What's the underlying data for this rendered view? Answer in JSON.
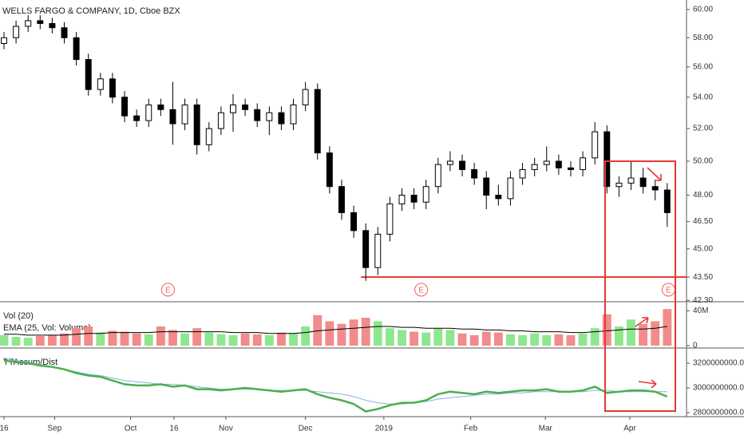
{
  "chart_data": [
    {
      "type": "candlestick",
      "title": "WELLS FARGO & COMPANY, 1D, Cboe BZX",
      "log_scale": true,
      "up_color": "#ffffff",
      "down_color": "#000000",
      "open": [
        57.6,
        58.0,
        58.8,
        59.2,
        59.0,
        58.7,
        58.0,
        56.5,
        54.5,
        55.2,
        54.0,
        52.8,
        52.5,
        53.5,
        53.2,
        52.3,
        53.5,
        51.0,
        52.0,
        53.0,
        53.5,
        53.2,
        52.5,
        53.0,
        52.3,
        53.5,
        54.5,
        50.5,
        48.5,
        47.0,
        46.0,
        44.0,
        45.8,
        47.5,
        48.0,
        47.6,
        48.5,
        49.8,
        50.0,
        49.5,
        49.0,
        48.0,
        47.8,
        49.0,
        49.5,
        49.8,
        50.0,
        49.6,
        49.5,
        50.2,
        51.8,
        48.5,
        48.7,
        49.0,
        48.5,
        48.3
      ],
      "high": [
        58.4,
        59.2,
        59.6,
        59.6,
        59.4,
        59.1,
        58.4,
        56.9,
        55.6,
        55.6,
        54.4,
        53.2,
        53.9,
        53.9,
        55.0,
        53.9,
        53.9,
        52.4,
        53.4,
        54.2,
        53.9,
        53.6,
        53.4,
        53.4,
        53.9,
        55.0,
        54.9,
        50.9,
        48.9,
        47.4,
        46.4,
        46.2,
        47.9,
        48.4,
        48.4,
        48.9,
        50.2,
        50.6,
        50.4,
        49.9,
        49.4,
        48.6,
        49.4,
        49.9,
        50.2,
        50.9,
        50.4,
        50.0,
        50.6,
        52.4,
        52.2,
        49.1,
        50.0,
        49.6,
        48.9,
        48.7
      ],
      "low": [
        57.2,
        57.6,
        58.4,
        58.6,
        58.3,
        57.6,
        56.1,
        54.1,
        54.1,
        53.6,
        52.4,
        52.1,
        52.1,
        52.8,
        51.0,
        51.9,
        50.4,
        50.6,
        51.6,
        51.8,
        52.8,
        52.1,
        51.6,
        51.9,
        51.9,
        53.1,
        50.1,
        48.1,
        46.6,
        45.6,
        43.3,
        43.6,
        45.4,
        47.1,
        47.2,
        47.2,
        48.1,
        49.4,
        49.1,
        48.6,
        47.2,
        47.4,
        47.4,
        48.6,
        49.1,
        49.4,
        49.2,
        49.1,
        49.1,
        49.8,
        48.1,
        47.9,
        48.3,
        48.1,
        47.7,
        46.2
      ],
      "close": [
        58.0,
        58.8,
        59.2,
        59.0,
        58.7,
        58.0,
        56.5,
        54.5,
        55.2,
        54.0,
        52.8,
        52.5,
        53.5,
        53.2,
        52.3,
        53.5,
        51.0,
        52.0,
        53.0,
        53.5,
        53.2,
        52.5,
        53.0,
        52.3,
        53.5,
        54.5,
        50.5,
        48.5,
        47.0,
        46.0,
        44.0,
        45.8,
        47.5,
        48.0,
        47.6,
        48.5,
        49.8,
        50.0,
        49.5,
        49.0,
        48.0,
        47.8,
        49.0,
        49.5,
        49.8,
        50.0,
        49.6,
        49.5,
        50.2,
        51.8,
        48.5,
        48.7,
        49.0,
        48.5,
        48.3,
        47.0
      ],
      "xlim": [
        -0.33,
        56.6
      ],
      "xticks": [
        {
          "value": 0,
          "label": "16"
        },
        {
          "value": 4.2,
          "label": "Sep"
        },
        {
          "value": 10.5,
          "label": "Oct"
        },
        {
          "value": 14.1,
          "label": "16"
        },
        {
          "value": 18.4,
          "label": "Nov"
        },
        {
          "value": 25,
          "label": "Dec"
        },
        {
          "value": 31.5,
          "label": "2019"
        },
        {
          "value": 38.7,
          "label": "Feb"
        },
        {
          "value": 44.9,
          "label": "Mar"
        },
        {
          "value": 51.9,
          "label": "Apr"
        }
      ],
      "ylim": [
        42.23,
        60.69
      ],
      "yticks": [
        {
          "value": 60,
          "label": "60.00"
        },
        {
          "value": 58,
          "label": "58.00"
        },
        {
          "value": 56,
          "label": "56.00"
        },
        {
          "value": 54,
          "label": "54.00"
        },
        {
          "value": 52,
          "label": "52.00"
        },
        {
          "value": 50,
          "label": "50.00"
        },
        {
          "value": 48,
          "label": "48.00"
        },
        {
          "value": 46.5,
          "label": "46.50"
        },
        {
          "value": 45,
          "label": "45.00"
        },
        {
          "value": 43.5,
          "label": "43.50"
        },
        {
          "value": 42.3,
          "label": "42.30"
        }
      ],
      "markers": [
        {
          "label": "E",
          "x": 13.6
        },
        {
          "label": "E",
          "x": 34.6
        },
        {
          "label": "E",
          "x": 55.1
        }
      ],
      "hline": {
        "value": 43.5,
        "x": [
          29.6,
          56.6
        ],
        "color": "#e53935"
      }
    },
    {
      "type": "bar",
      "title": "Vol (20)",
      "subtitle": "EMA (25, Vol: Volume)",
      "up_color": "#8ee68e",
      "down_color": "#f28b8b",
      "line_color": "#000000",
      "values": [
        12,
        10,
        9,
        11,
        12,
        14,
        20,
        22,
        15,
        17,
        16,
        14,
        13,
        22,
        18,
        14,
        20,
        15,
        13,
        12,
        14,
        13,
        12,
        15,
        14,
        22,
        35,
        28,
        25,
        30,
        32,
        28,
        20,
        18,
        16,
        15,
        20,
        18,
        14,
        12,
        16,
        15,
        13,
        12,
        14,
        12,
        13,
        12,
        14,
        20,
        36,
        22,
        30,
        25,
        28,
        42
      ],
      "ema": [
        13,
        13,
        12,
        12,
        12,
        12,
        13,
        14,
        14,
        15,
        15,
        15,
        15,
        16,
        16,
        16,
        16,
        16,
        16,
        15,
        15,
        15,
        14,
        14,
        14,
        15,
        17,
        18,
        19,
        20,
        21,
        22,
        22,
        21,
        21,
        20,
        20,
        20,
        19,
        19,
        18,
        18,
        17,
        17,
        16,
        16,
        16,
        15,
        15,
        16,
        17,
        18,
        19,
        19,
        20,
        22
      ],
      "ylim": [
        0,
        48.6
      ],
      "yticks": [
        {
          "value": 40,
          "label": "40M"
        },
        0
      ]
    },
    {
      "type": "line",
      "title": "TTAccum/Dist",
      "series": [
        {
          "name": "TTAccum/Dist",
          "color": "#4caf50",
          "values": [
            3220000000.0,
            3210000000.0,
            3200000000.0,
            3180000000.0,
            3170000000.0,
            3150000000.0,
            3120000000.0,
            3100000000.0,
            3090000000.0,
            3060000000.0,
            3030000000.0,
            3020000000.0,
            3020000000.0,
            3030000000.0,
            3010000000.0,
            3020000000.0,
            2990000000.0,
            2990000000.0,
            2980000000.0,
            2990000000.0,
            3000000000.0,
            2990000000.0,
            2980000000.0,
            2970000000.0,
            2980000000.0,
            2990000000.0,
            2950000000.0,
            2920000000.0,
            2900000000.0,
            2870000000.0,
            2810000000.0,
            2830000000.0,
            2860000000.0,
            2880000000.0,
            2880000000.0,
            2900000000.0,
            2950000000.0,
            2970000000.0,
            2960000000.0,
            2950000000.0,
            2970000000.0,
            2960000000.0,
            2970000000.0,
            2980000000.0,
            2980000000.0,
            2990000000.0,
            2970000000.0,
            2970000000.0,
            2980000000.0,
            3010000000.0,
            2960000000.0,
            2970000000.0,
            2980000000.0,
            2980000000.0,
            2970000000.0,
            2930000000.0
          ]
        },
        {
          "color": "#7fb8d8",
          "values": [
            3240000000.0,
            3220000000.0,
            3210000000.0,
            3190000000.0,
            3170000000.0,
            3150000000.0,
            3130000000.0,
            3110000000.0,
            3100000000.0,
            3080000000.0,
            3060000000.0,
            3050000000.0,
            3040000000.0,
            3030000000.0,
            3030000000.0,
            3020000000.0,
            3010000000.0,
            3000000000.0,
            2990000000.0,
            2990000000.0,
            2990000000.0,
            2990000000.0,
            2980000000.0,
            2980000000.0,
            2980000000.0,
            2980000000.0,
            2970000000.0,
            2960000000.0,
            2950000000.0,
            2930000000.0,
            2900000000.0,
            2880000000.0,
            2870000000.0,
            2870000000.0,
            2880000000.0,
            2890000000.0,
            2910000000.0,
            2920000000.0,
            2930000000.0,
            2940000000.0,
            2950000000.0,
            2950000000.0,
            2960000000.0,
            2960000000.0,
            2970000000.0,
            2970000000.0,
            2970000000.0,
            2970000000.0,
            2970000000.0,
            2980000000.0,
            2980000000.0,
            2970000000.0,
            2970000000.0,
            2970000000.0,
            2970000000.0,
            2970000000.0
          ]
        }
      ],
      "ylim": [
        2768000000.0,
        3316000000.0
      ],
      "yticks": [
        {
          "value": 3200000000,
          "label": "3200000000.00"
        },
        {
          "value": 3000000000,
          "label": "3000000000.00"
        },
        {
          "value": 2800000000,
          "label": "2800000000.00"
        }
      ]
    }
  ]
}
